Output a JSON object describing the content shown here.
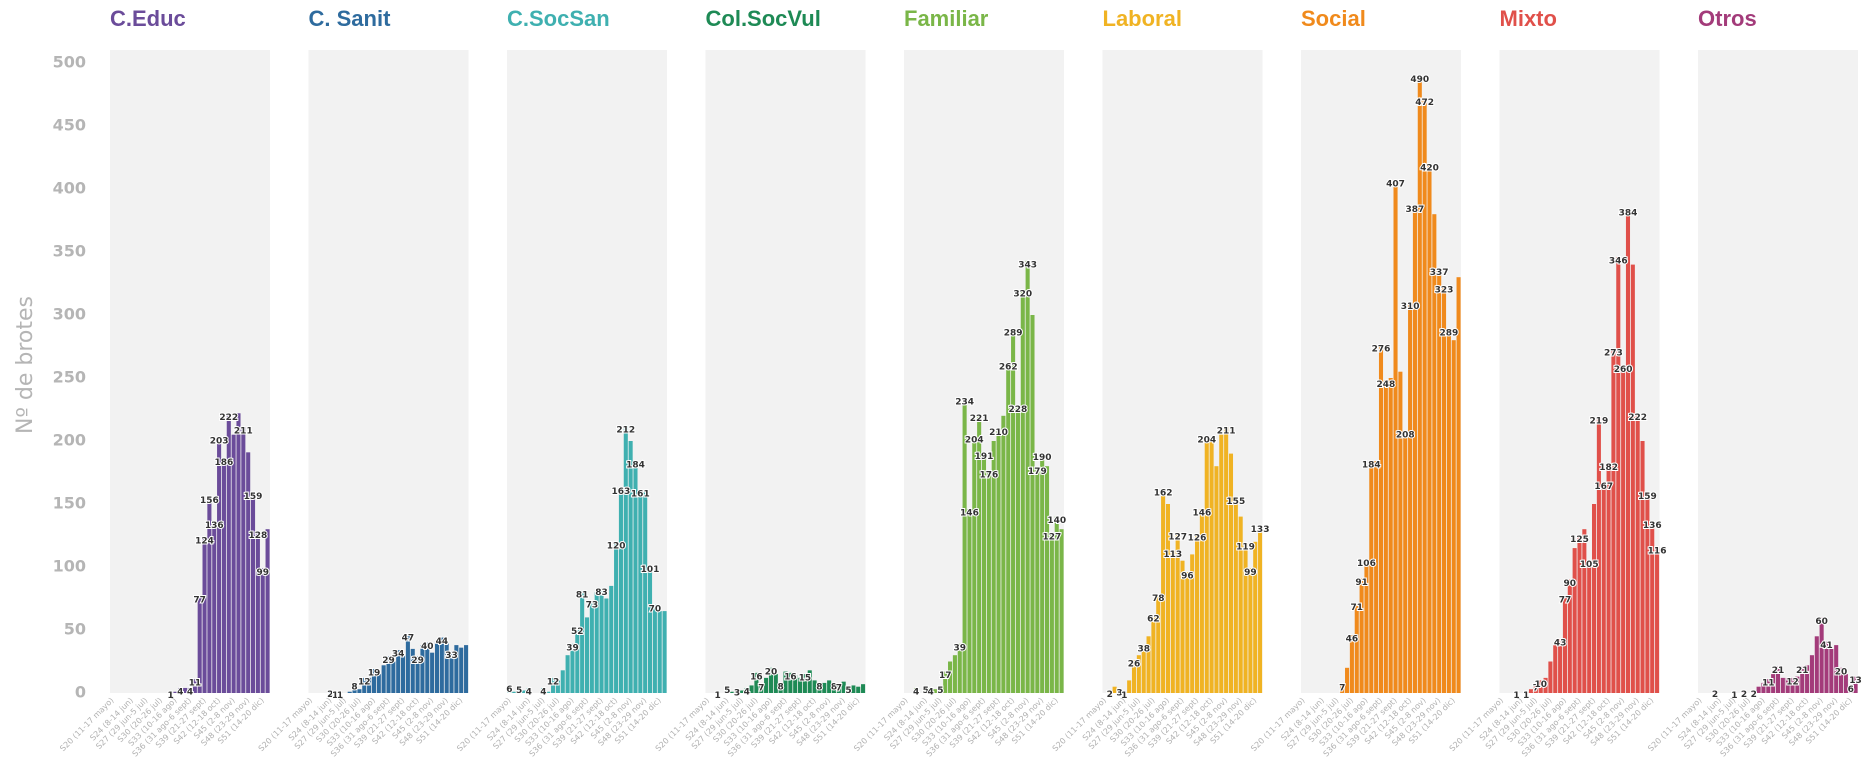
{
  "chart_data": {
    "type": "bar",
    "ylabel": "Nº de brotes",
    "ylim": [
      0,
      500
    ],
    "yticks": [
      0,
      50,
      100,
      150,
      200,
      250,
      300,
      350,
      400,
      450,
      500
    ],
    "grid": false,
    "categories": [
      "S20 (11-17 mayo)",
      null,
      null,
      null,
      "S24 (8-14 jun)",
      null,
      null,
      "S27 (29 jun-5 jul)",
      null,
      null,
      "S30 (20-26 jul)",
      null,
      null,
      "S33 (10-16 ago)",
      null,
      null,
      "S36 (31 ago-6 sept)",
      null,
      null,
      "S39 (21-27 sept)",
      null,
      null,
      "S42 (12-18 oct)",
      null,
      null,
      "S45 (2-8 nov)",
      null,
      null,
      "S48 (23-29 nov)",
      null,
      null,
      "S51 (14-20 dic)",
      null
    ],
    "series": [
      {
        "name": "C.Educ",
        "color": "#6b4c9a",
        "values": [
          0,
          0,
          0,
          0,
          0,
          0,
          0,
          0,
          0,
          0,
          0,
          0,
          1,
          1,
          4,
          4,
          4,
          11,
          77,
          124,
          156,
          136,
          203,
          186,
          222,
          205,
          222,
          211,
          191,
          159,
          128,
          99,
          130
        ],
        "value_labels": [
          null,
          null,
          null,
          null,
          null,
          null,
          null,
          null,
          null,
          null,
          null,
          null,
          1,
          null,
          4,
          null,
          4,
          11,
          77,
          124,
          156,
          136,
          203,
          186,
          222,
          null,
          null,
          211,
          null,
          159,
          128,
          99,
          null
        ]
      },
      {
        "name": "C. Sanit",
        "color": "#2e6b9e",
        "values": [
          0,
          0,
          0,
          0,
          2,
          1,
          1,
          0,
          1,
          8,
          3,
          12,
          12,
          19,
          15,
          22,
          29,
          25,
          34,
          30,
          47,
          35,
          29,
          38,
          40,
          32,
          41,
          44,
          40,
          33,
          38,
          36,
          38
        ],
        "value_labels": [
          null,
          null,
          null,
          null,
          2,
          1,
          1,
          null,
          null,
          8,
          null,
          12,
          null,
          19,
          null,
          null,
          29,
          null,
          34,
          null,
          47,
          null,
          29,
          null,
          40,
          null,
          null,
          44,
          null,
          33,
          null,
          null,
          null
        ]
      },
      {
        "name": "C.SocSan",
        "color": "#3fb0b0",
        "values": [
          6,
          1,
          5,
          2,
          4,
          0,
          0,
          4,
          1,
          12,
          10,
          18,
          30,
          39,
          52,
          81,
          60,
          73,
          80,
          83,
          75,
          85,
          120,
          163,
          212,
          200,
          184,
          161,
          160,
          101,
          70,
          65,
          65
        ],
        "value_labels": [
          6,
          null,
          5,
          null,
          4,
          null,
          null,
          4,
          null,
          12,
          null,
          null,
          null,
          39,
          52,
          81,
          null,
          73,
          null,
          83,
          null,
          null,
          120,
          163,
          212,
          null,
          184,
          161,
          null,
          101,
          70,
          null,
          null
        ]
      },
      {
        "name": "Col.SocVul",
        "color": "#1e8a55",
        "values": [
          0,
          0,
          1,
          0,
          5,
          1,
          3,
          2,
          4,
          6,
          16,
          7,
          12,
          20,
          15,
          8,
          17,
          16,
          14,
          12,
          15,
          18,
          10,
          8,
          8,
          10,
          8,
          7,
          9,
          5,
          6,
          5,
          7
        ],
        "value_labels": [
          null,
          null,
          1,
          null,
          5,
          null,
          3,
          null,
          4,
          null,
          16,
          7,
          null,
          20,
          null,
          8,
          null,
          16,
          null,
          null,
          15,
          null,
          null,
          8,
          null,
          null,
          8,
          7,
          null,
          5,
          null,
          null,
          null
        ]
      },
      {
        "name": "Familiar",
        "color": "#7ab648",
        "values": [
          0,
          0,
          4,
          0,
          5,
          4,
          3,
          5,
          17,
          25,
          30,
          39,
          234,
          146,
          204,
          221,
          191,
          176,
          200,
          210,
          220,
          262,
          289,
          228,
          320,
          343,
          300,
          179,
          190,
          180,
          127,
          140,
          130
        ],
        "value_labels": [
          null,
          null,
          4,
          null,
          5,
          4,
          null,
          5,
          17,
          null,
          null,
          39,
          234,
          146,
          204,
          221,
          191,
          176,
          null,
          210,
          null,
          262,
          289,
          228,
          320,
          343,
          null,
          179,
          190,
          null,
          127,
          140,
          null
        ]
      },
      {
        "name": "Laboral",
        "color": "#f0b323",
        "values": [
          0,
          2,
          5,
          3,
          1,
          10,
          26,
          30,
          38,
          45,
          62,
          78,
          162,
          150,
          113,
          127,
          105,
          96,
          110,
          126,
          146,
          204,
          200,
          180,
          205,
          211,
          190,
          155,
          140,
          119,
          99,
          120,
          133
        ],
        "value_labels": [
          null,
          2,
          null,
          3,
          1,
          null,
          26,
          null,
          38,
          null,
          62,
          78,
          162,
          null,
          113,
          127,
          null,
          96,
          null,
          126,
          146,
          204,
          null,
          null,
          null,
          211,
          null,
          155,
          null,
          119,
          99,
          null,
          133
        ]
      },
      {
        "name": "Social",
        "color": "#f08a1c",
        "values": [
          0,
          0,
          0,
          0,
          0,
          0,
          0,
          0,
          7,
          20,
          46,
          71,
          91,
          106,
          184,
          184,
          276,
          248,
          250,
          407,
          255,
          208,
          310,
          387,
          490,
          472,
          420,
          380,
          337,
          323,
          289,
          280,
          330
        ],
        "value_labels": [
          null,
          null,
          null,
          null,
          null,
          null,
          null,
          null,
          7,
          null,
          46,
          71,
          91,
          106,
          184,
          null,
          276,
          248,
          null,
          407,
          null,
          208,
          310,
          387,
          490,
          472,
          420,
          null,
          337,
          323,
          289,
          null,
          null
        ]
      },
      {
        "name": "Mixto",
        "color": "#e0504a",
        "values": [
          0,
          0,
          0,
          1,
          0,
          1,
          3,
          7,
          10,
          12,
          25,
          38,
          43,
          77,
          90,
          115,
          125,
          130,
          105,
          150,
          219,
          167,
          182,
          273,
          346,
          260,
          384,
          340,
          222,
          200,
          159,
          136,
          116
        ],
        "value_labels": [
          null,
          null,
          null,
          1,
          null,
          1,
          null,
          7,
          10,
          null,
          null,
          null,
          43,
          77,
          90,
          null,
          125,
          null,
          105,
          null,
          219,
          167,
          182,
          273,
          346,
          260,
          384,
          null,
          222,
          null,
          159,
          136,
          116
        ]
      },
      {
        "name": "Otros",
        "color": "#a33b7a",
        "values": [
          0,
          0,
          0,
          2,
          0,
          0,
          0,
          1,
          0,
          2,
          0,
          2,
          5,
          8,
          11,
          15,
          21,
          12,
          12,
          12,
          13,
          21,
          22,
          30,
          45,
          60,
          41,
          35,
          38,
          20,
          15,
          6,
          13
        ],
        "value_labels": [
          null,
          null,
          null,
          2,
          null,
          null,
          null,
          1,
          null,
          2,
          null,
          2,
          null,
          null,
          11,
          null,
          21,
          null,
          null,
          12,
          null,
          21,
          null,
          null,
          null,
          60,
          41,
          null,
          null,
          20,
          null,
          6,
          13
        ]
      }
    ]
  }
}
